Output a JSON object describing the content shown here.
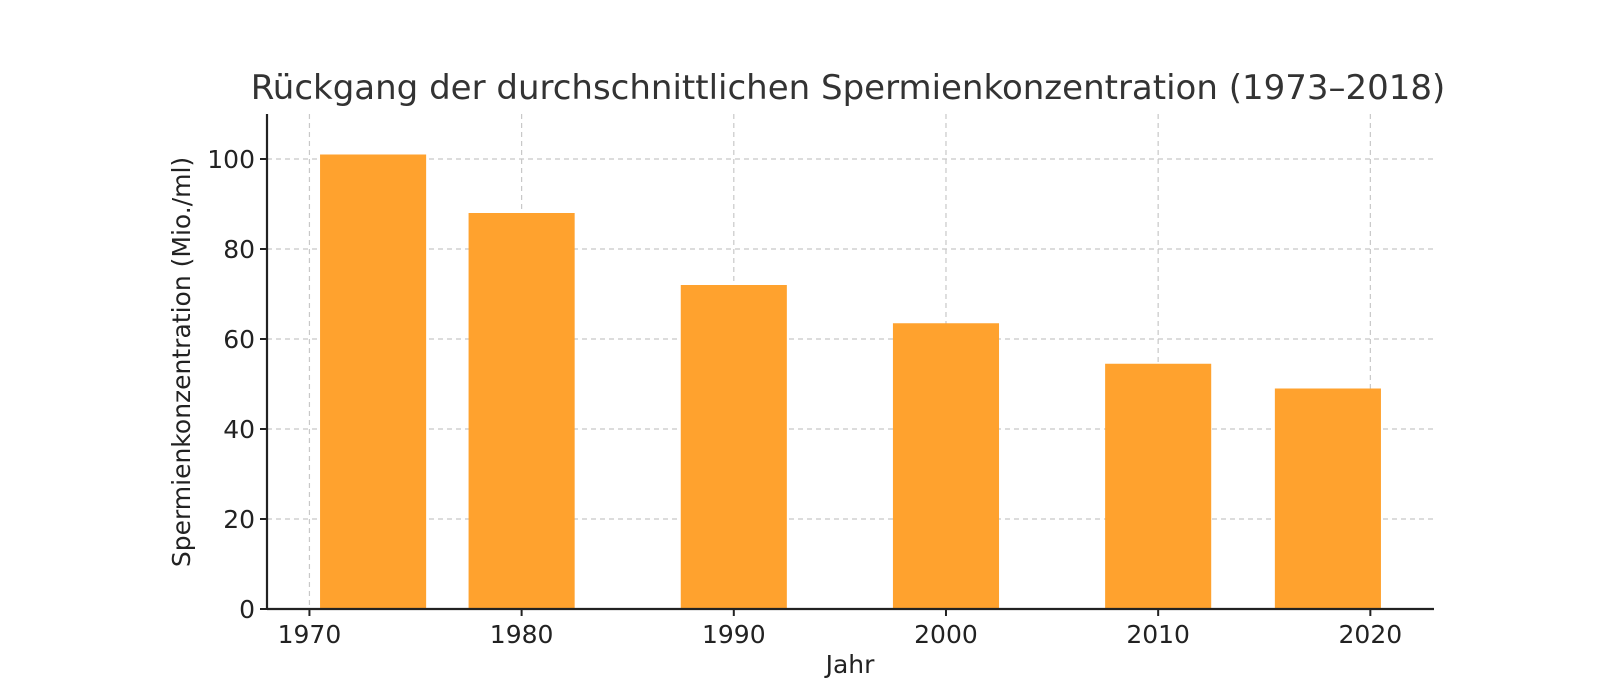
{
  "chart_data": {
    "type": "bar",
    "title": "Rückgang der durchschnittlichen Spermienkonzentration (1973–2018)",
    "xlabel": "Jahr",
    "ylabel": "Spermienkonzentration (Mio./ml)",
    "x": [
      1973,
      1980,
      1990,
      2000,
      2010,
      2018
    ],
    "values": [
      101,
      88,
      72,
      63.5,
      54.5,
      49
    ],
    "bar_width_years": 5,
    "xlim": [
      1968,
      2023
    ],
    "ylim": [
      0,
      110
    ],
    "xticks": [
      1970,
      1980,
      1990,
      2000,
      2010,
      2020
    ],
    "yticks": [
      0,
      20,
      40,
      60,
      80,
      100
    ],
    "grid": true,
    "bar_color": "#ffa22e",
    "grid_color": "#c8c8c8",
    "axis_color": "#222222",
    "title_color": "#333333"
  }
}
